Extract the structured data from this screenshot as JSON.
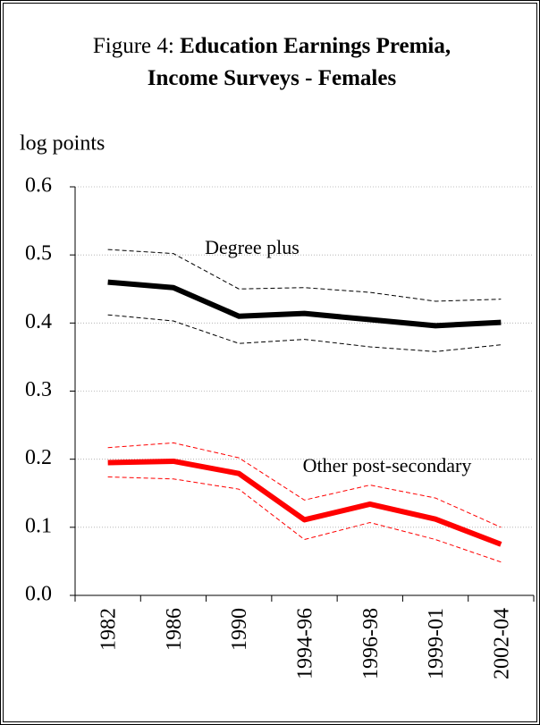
{
  "chart_data": {
    "type": "line",
    "title_label": "Figure 4:",
    "title": "Education Earnings Premia, Income Surveys - Females",
    "y_label": "log points",
    "categories": [
      "1982",
      "1986",
      "1990",
      "1994-96",
      "1996-98",
      "1999-01",
      "2002-04"
    ],
    "series": [
      {
        "name": "Degree plus",
        "color": "#000000",
        "values": [
          0.46,
          0.452,
          0.41,
          0.414,
          0.405,
          0.396,
          0.401
        ],
        "upper": [
          0.508,
          0.502,
          0.45,
          0.452,
          0.445,
          0.432,
          0.435
        ],
        "lower": [
          0.412,
          0.403,
          0.37,
          0.376,
          0.365,
          0.358,
          0.368
        ]
      },
      {
        "name": "Other post-secondary",
        "color": "#ff0000",
        "values": [
          0.195,
          0.197,
          0.179,
          0.111,
          0.134,
          0.112,
          0.075
        ],
        "upper": [
          0.217,
          0.224,
          0.202,
          0.14,
          0.162,
          0.143,
          0.1
        ],
        "lower": [
          0.174,
          0.171,
          0.156,
          0.082,
          0.107,
          0.082,
          0.049
        ]
      }
    ],
    "ylim": [
      0,
      0.6
    ],
    "yticks": [
      {
        "value": 0,
        "label": "0.0"
      },
      0.1,
      0.2,
      0.3,
      0.4,
      0.5,
      0.6
    ],
    "grid": true
  }
}
